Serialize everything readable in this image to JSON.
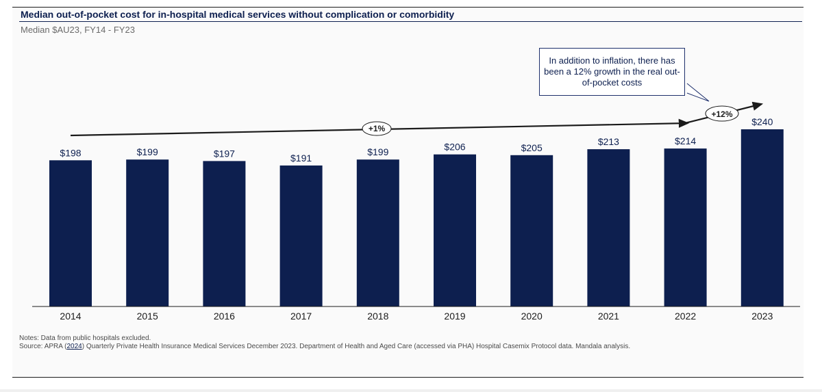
{
  "header": {
    "title": "Median out-of-pocket cost for in-hospital medical services without complication or comorbidity",
    "subtitle": "Median $AU23, FY14 - FY23"
  },
  "chart_data": {
    "type": "bar",
    "categories": [
      "2014",
      "2015",
      "2016",
      "2017",
      "2018",
      "2019",
      "2020",
      "2021",
      "2022",
      "2023"
    ],
    "values": [
      198,
      199,
      197,
      191,
      199,
      206,
      205,
      213,
      214,
      240
    ],
    "data_labels": [
      "$198",
      "$199",
      "$197",
      "$191",
      "$199",
      "$206",
      "$205",
      "$213",
      "$214",
      "$240"
    ],
    "ylim": [
      0,
      240
    ],
    "grid": false,
    "bar_color": "#0d1f4f",
    "annotations": {
      "trend_1_label": "+1%",
      "trend_2_label": "+12%",
      "callout": "In addition to inflation, there has been a 12% growth in the real out-of-pocket costs"
    }
  },
  "notes": {
    "line1": "Notes: Data from public hospitals excluded.",
    "source_prefix": "Source: APRA (",
    "source_link": "2024",
    "source_suffix": ") Quarterly Private Health Insurance Medical Services December 2023. Department of Health and Aged Care (accessed via PHA) Hospital Casemix Protocol data. Mandala analysis."
  },
  "colors": {
    "accent": "#0d1f4f",
    "text_muted": "#6a6a6a"
  }
}
